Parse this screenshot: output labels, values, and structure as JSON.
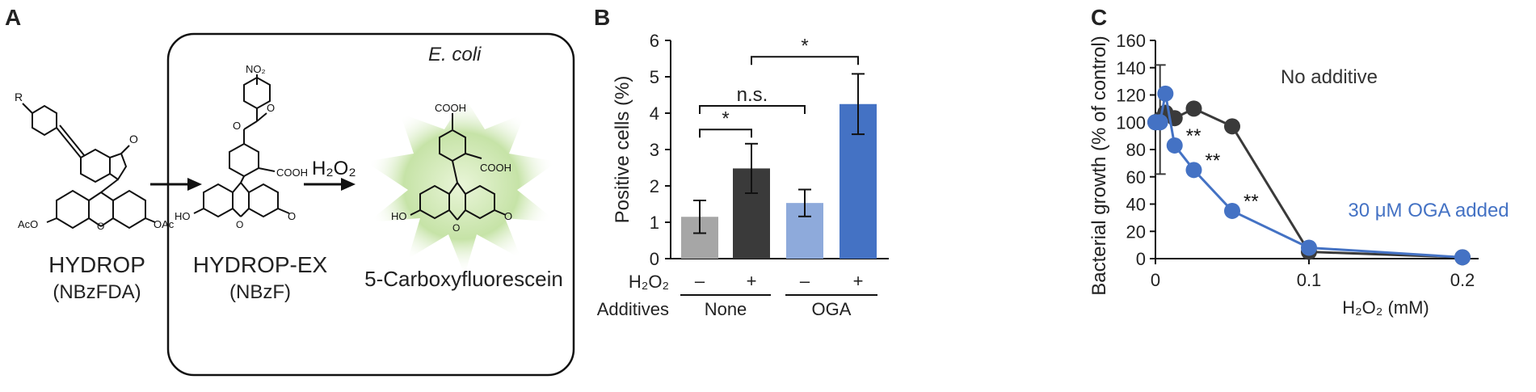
{
  "panel_a": {
    "letter": "A",
    "box_title": "E. coli",
    "compound1_name": "HYDROP",
    "compound1_sub": "(NBzFDA)",
    "compound2_name": "HYDROP-EX",
    "compound2_sub": "(NBzF)",
    "compound3_name": "5-Carboxyfluorescein",
    "reagent": "H₂O₂",
    "struct_labels": {
      "r": "R",
      "no2": "NO₂",
      "o": "O",
      "cooh": "COOH",
      "acO": "AcO",
      "oac": "OAc",
      "ho": "HO"
    }
  },
  "panel_b": {
    "letter": "B",
    "row1_label": "H₂O₂",
    "row2_label": "Additives",
    "h2o2_marks": [
      "–",
      "+",
      "–",
      "+"
    ],
    "groups": [
      "None",
      "OGA"
    ],
    "significance": [
      "*",
      "n.s.",
      "*"
    ]
  },
  "panel_c": {
    "letter": "C",
    "annotation_no_additive": "No additive",
    "annotation_oga": "30 μM OGA added",
    "stars": [
      "**",
      "**",
      "**"
    ]
  },
  "chart_data": [
    {
      "type": "bar",
      "panel": "B",
      "ylabel": "Positive cells (%)",
      "ylim": [
        0,
        6
      ],
      "yticks": [
        0,
        1,
        2,
        3,
        4,
        5,
        6
      ],
      "categories": [
        "None –",
        "None +",
        "OGA –",
        "OGA +"
      ],
      "values": [
        1.15,
        2.48,
        1.53,
        4.25
      ],
      "errors": [
        0.45,
        0.68,
        0.37,
        0.83
      ],
      "colors": [
        "#a6a6a6",
        "#3a3a3a",
        "#8eaadb",
        "#4472c4"
      ]
    },
    {
      "type": "line",
      "panel": "C",
      "xlabel": "H₂O₂ (mM)",
      "ylabel": "Bacterial growth (% of control)",
      "xlim": [
        0,
        0.2
      ],
      "ylim": [
        0,
        160
      ],
      "xticks": [
        0,
        0.1,
        0.2
      ],
      "yticks": [
        0,
        20,
        40,
        60,
        80,
        100,
        120,
        140,
        160
      ],
      "series": [
        {
          "name": "No additive",
          "color": "#3a3a3a",
          "x": [
            0,
            0.003,
            0.0065,
            0.0125,
            0.025,
            0.05,
            0.1,
            0.2
          ],
          "y": [
            100,
            102,
            107,
            103,
            110,
            97,
            5,
            1
          ],
          "err": [
            0,
            40,
            0,
            0,
            0,
            0,
            0,
            0
          ]
        },
        {
          "name": "30 μM OGA added",
          "color": "#4472c4",
          "x": [
            0,
            0.003,
            0.0065,
            0.0125,
            0.025,
            0.05,
            0.1,
            0.2
          ],
          "y": [
            100,
            100,
            121,
            83,
            65,
            35,
            8,
            1
          ]
        }
      ]
    }
  ]
}
